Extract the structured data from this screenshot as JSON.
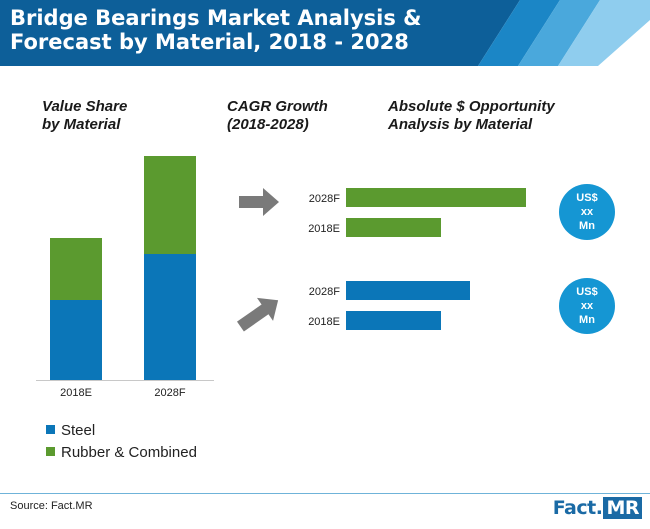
{
  "header": {
    "title": "Bridge Bearings Market Analysis & Forecast by Material, 2018 - 2028"
  },
  "sections": {
    "value_share": "Value Share\nby Material",
    "cagr": "CAGR Growth\n(2018-2028)",
    "opportunity": "Absolute $ Opportunity\nAnalysis by Material"
  },
  "colors": {
    "steel": "#0b76b8",
    "rubber": "#5b9a2f",
    "header_dark": "#0d5f99",
    "header_light": "#7cc4ea",
    "arrow": "#7a7a7a",
    "circle": "#1596d3"
  },
  "legend": {
    "steel": "Steel",
    "rubber": "Rubber & Combined"
  },
  "chart_data": [
    {
      "type": "bar",
      "stacked": true,
      "categories": [
        "2018E",
        "2028F"
      ],
      "series": [
        {
          "name": "Steel",
          "values": [
            80,
            126
          ]
        },
        {
          "name": "Rubber & Combined",
          "values": [
            62,
            98
          ]
        }
      ],
      "ylim": [
        0,
        224
      ],
      "grid": false,
      "legend_position": "bottom-left"
    },
    {
      "type": "bar",
      "orientation": "horizontal",
      "group": "Rubber & Combined",
      "categories": [
        "2028F",
        "2018E"
      ],
      "values": [
        180,
        95
      ],
      "xlim": [
        0,
        180
      ],
      "badge": [
        "US$",
        "xx",
        "Mn"
      ]
    },
    {
      "type": "bar",
      "orientation": "horizontal",
      "group": "Steel",
      "categories": [
        "2028F",
        "2018E"
      ],
      "values": [
        124,
        95
      ],
      "xlim": [
        0,
        180
      ],
      "badge": [
        "US$",
        "xx",
        "Mn"
      ]
    }
  ],
  "footer": {
    "source": "Source: Fact.MR",
    "logo_left": "Fact",
    "logo_right": "MR"
  }
}
